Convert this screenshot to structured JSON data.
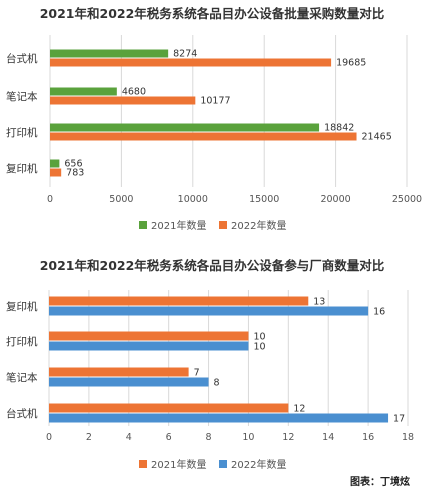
{
  "chart_data": [
    {
      "type": "bar",
      "orientation": "horizontal",
      "title": "2021年和2022年税务系统各品目办公设备批量采购数量对比",
      "categories": [
        "台式机",
        "笔记本",
        "打印机",
        "复印机"
      ],
      "series": [
        {
          "name": "2021年数量",
          "color": "#5aa23c",
          "values": [
            8274,
            4680,
            18842,
            656
          ]
        },
        {
          "name": "2022年数量",
          "color": "#ed7434",
          "values": [
            19685,
            10177,
            21465,
            783
          ]
        }
      ],
      "xlim": [
        0,
        25000
      ],
      "xticks": [
        "0",
        "5000",
        "10000",
        "15000",
        "20000",
        "25000"
      ],
      "grid": true,
      "legend_position": "bottom"
    },
    {
      "type": "bar",
      "orientation": "horizontal",
      "title": "2021年和2022年税务系统各品目办公设备参与厂商数量对比",
      "categories": [
        "复印机",
        "打印机",
        "笔记本",
        "台式机"
      ],
      "series": [
        {
          "name": "2021年数量",
          "color": "#ed7434",
          "values": [
            13,
            10,
            7,
            12
          ]
        },
        {
          "name": "2022年数量",
          "color": "#4a8fd0",
          "values": [
            16,
            10,
            8,
            17
          ]
        }
      ],
      "xlim": [
        0,
        18
      ],
      "xticks": [
        "0",
        "2",
        "4",
        "6",
        "8",
        "10",
        "12",
        "14",
        "16",
        "18"
      ],
      "grid": true,
      "legend_position": "bottom"
    }
  ],
  "credit": "图表：丁境炫"
}
